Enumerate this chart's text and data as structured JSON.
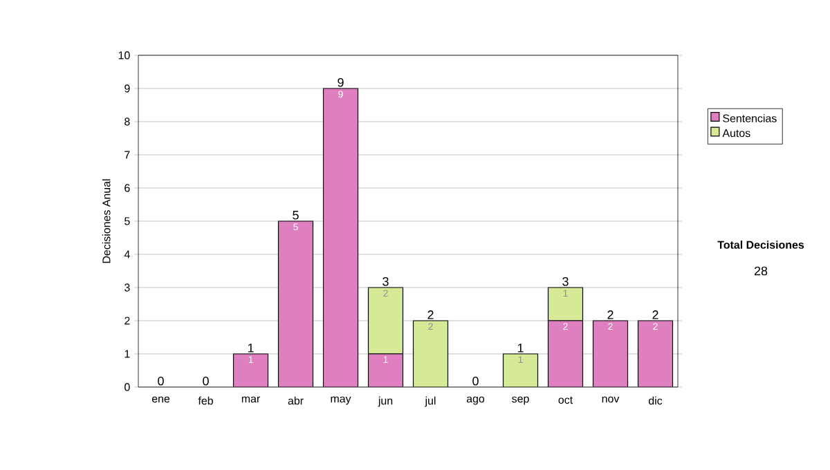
{
  "chart_data": {
    "type": "bar",
    "stacked": true,
    "ylabel": "Decisiones Anual",
    "categories": [
      "ene",
      "feb",
      "mar",
      "abr",
      "may",
      "jun",
      "jul",
      "ago",
      "sep",
      "oct",
      "nov",
      "dic"
    ],
    "series": [
      {
        "name": "Sentencias",
        "color": "#de80c0",
        "values": [
          0,
          0,
          1,
          5,
          9,
          1,
          0,
          0,
          0,
          2,
          2,
          2
        ],
        "value_labels": [
          null,
          null,
          "1",
          "5",
          "9",
          "1",
          null,
          null,
          null,
          "2",
          "2",
          "2"
        ]
      },
      {
        "name": "Autos",
        "color": "#d6e996",
        "values": [
          0,
          0,
          0,
          0,
          0,
          2,
          2,
          0,
          1,
          1,
          0,
          0
        ],
        "value_labels": [
          null,
          null,
          null,
          null,
          null,
          "2",
          "2",
          null,
          "1",
          "1",
          null,
          null
        ]
      }
    ],
    "totals": [
      "0",
      "0",
      "1",
      "5",
      "9",
      "3",
      "2",
      "0",
      "1",
      "3",
      "2",
      "2"
    ],
    "ylim": [
      0,
      10
    ],
    "yticks": [
      0,
      1,
      2,
      3,
      4,
      5,
      6,
      7,
      8,
      9,
      10
    ],
    "grid": "y",
    "legend": "right",
    "annotations": [
      "Total Decisiones",
      "28"
    ]
  }
}
